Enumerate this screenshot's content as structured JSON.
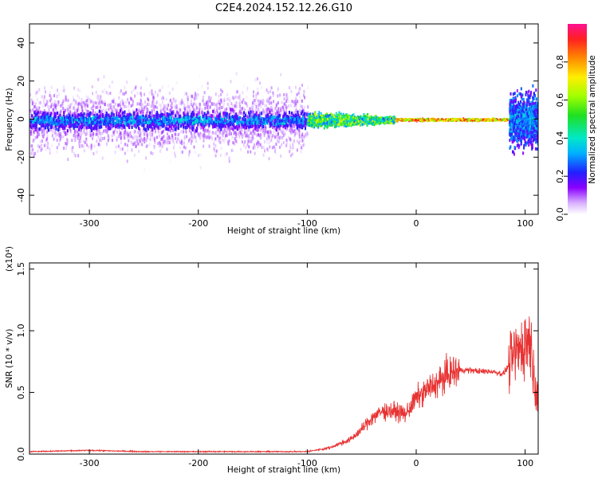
{
  "title": "C2E4.2024.152.12.26.G10",
  "chart_data": [
    {
      "type": "heatmap",
      "xlabel": "Height of straight line (km)",
      "ylabel": "Frequency (Hz)",
      "xlim": [
        -355,
        112
      ],
      "ylim": [
        -50,
        50
      ],
      "xticks": [
        -300,
        -200,
        -100,
        0,
        100
      ],
      "yticks": [
        -40,
        -20,
        0,
        20,
        40
      ],
      "colorbar": {
        "label": "Normalized spectral amplitude",
        "range": [
          0.0,
          1.0
        ],
        "ticks": [
          0.0,
          0.2,
          0.4,
          0.6,
          0.8
        ]
      }
    },
    {
      "type": "line",
      "xlabel": "Height of straight line (km)",
      "ylabel": "SNR (10 * v/v)",
      "y_multiplier": "(x10⁴)",
      "xlim": [
        -355,
        112
      ],
      "ylim": [
        0.0,
        1.55
      ],
      "xticks": [
        -300,
        -200,
        -100,
        0,
        100
      ],
      "yticks": [
        "0.0",
        "0.5",
        "1.0",
        "1.5"
      ],
      "line_color": "#e83232",
      "series": [
        {
          "x": [
            -355,
            -300,
            -250,
            -200,
            -150,
            -100,
            -80,
            -60,
            -50,
            -40,
            -30,
            -20,
            -10,
            0,
            10,
            20,
            30,
            40,
            50,
            60,
            70,
            80,
            85,
            90,
            95,
            100,
            105,
            108,
            112
          ],
          "values": [
            0.02,
            0.03,
            0.02,
            0.02,
            0.02,
            0.02,
            0.05,
            0.12,
            0.2,
            0.3,
            0.35,
            0.35,
            0.32,
            0.45,
            0.52,
            0.58,
            0.65,
            0.68,
            0.68,
            0.67,
            0.67,
            0.65,
            0.72,
            0.8,
            0.85,
            0.9,
            0.95,
            0.6,
            0.52
          ]
        }
      ]
    }
  ]
}
